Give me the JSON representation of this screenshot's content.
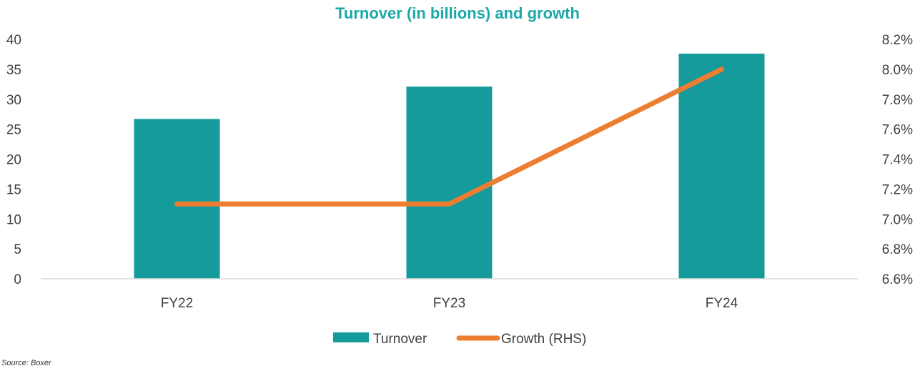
{
  "chart_data": {
    "type": "bar",
    "title": "Turnover (in billions) and growth",
    "categories": [
      "FY22",
      "FY23",
      "FY24"
    ],
    "series": [
      {
        "name": "Turnover",
        "type": "bar",
        "axis": "left",
        "color": "#159b9b",
        "values": [
          26.7,
          32.1,
          37.6
        ]
      },
      {
        "name": "Growth (RHS)",
        "type": "line",
        "axis": "right",
        "color": "#ed7d31",
        "values": [
          7.1,
          7.1,
          8.0
        ]
      }
    ],
    "ylim": [
      0,
      40
    ],
    "yticks": [
      "0",
      "5",
      "10",
      "15",
      "20",
      "25",
      "30",
      "35",
      "40"
    ],
    "y2lim": [
      6.6,
      8.2
    ],
    "y2ticks": [
      "6.6%",
      "6.8%",
      "7.0%",
      "7.2%",
      "7.4%",
      "7.6%",
      "7.8%",
      "8.0%",
      "8.2%"
    ],
    "legend": "bottom",
    "grid": false
  },
  "source": "Source: Boxer"
}
